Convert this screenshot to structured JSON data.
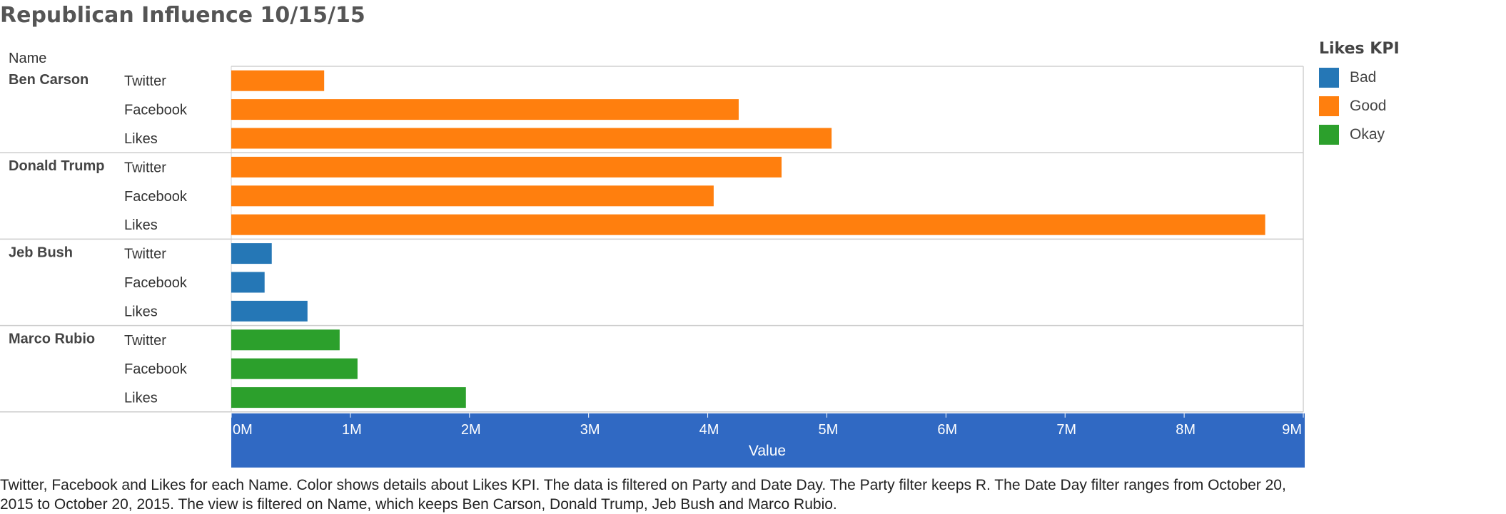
{
  "title": "Republican Influence 10/15/15",
  "caption": "Twitter, Facebook and Likes for each Name.  Color shows details about Likes KPI. The data is filtered on Party and Date Day. The Party filter keeps R. The Date Day filter ranges from October 20, 2015 to October 20, 2015. The view is filtered on Name, which keeps Ben Carson, Donald Trump, Jeb Bush and Marco Rubio.",
  "legend": {
    "title": "Likes KPI",
    "items": [
      {
        "label": "Bad",
        "color": "#2577b6"
      },
      {
        "label": "Good",
        "color": "#ff7f0e"
      },
      {
        "label": "Okay",
        "color": "#2ca02c"
      }
    ]
  },
  "chart_data": {
    "type": "bar",
    "orientation": "horizontal",
    "title": "Republican Influence 10/15/15",
    "row_header": "Name",
    "xlabel": "Value",
    "xlim": [
      0,
      9000000
    ],
    "xticks": [
      {
        "value": 0,
        "label": "0M"
      },
      {
        "value": 1000000,
        "label": "1M"
      },
      {
        "value": 2000000,
        "label": "2M"
      },
      {
        "value": 3000000,
        "label": "3M"
      },
      {
        "value": 4000000,
        "label": "4M"
      },
      {
        "value": 5000000,
        "label": "5M"
      },
      {
        "value": 6000000,
        "label": "6M"
      },
      {
        "value": 7000000,
        "label": "7M"
      },
      {
        "value": 8000000,
        "label": "8M"
      },
      {
        "value": 9000000,
        "label": "9M"
      }
    ],
    "color_by": "Likes KPI",
    "groups": [
      {
        "name": "Ben Carson",
        "kpi": "Good",
        "color": "#ff7f0e",
        "bars": [
          {
            "measure": "Twitter",
            "value": 780000
          },
          {
            "measure": "Facebook",
            "value": 4260000
          },
          {
            "measure": "Likes",
            "value": 5040000
          }
        ]
      },
      {
        "name": "Donald Trump",
        "kpi": "Good",
        "color": "#ff7f0e",
        "bars": [
          {
            "measure": "Twitter",
            "value": 4620000
          },
          {
            "measure": "Facebook",
            "value": 4050000
          },
          {
            "measure": "Likes",
            "value": 8680000
          }
        ]
      },
      {
        "name": "Jeb Bush",
        "kpi": "Bad",
        "color": "#2577b6",
        "bars": [
          {
            "measure": "Twitter",
            "value": 340000
          },
          {
            "measure": "Facebook",
            "value": 280000
          },
          {
            "measure": "Likes",
            "value": 640000
          }
        ]
      },
      {
        "name": "Marco Rubio",
        "kpi": "Okay",
        "color": "#2ca02c",
        "bars": [
          {
            "measure": "Twitter",
            "value": 910000
          },
          {
            "measure": "Facebook",
            "value": 1060000
          },
          {
            "measure": "Likes",
            "value": 1970000
          }
        ]
      }
    ],
    "axis_band_color": "#3069c3"
  }
}
